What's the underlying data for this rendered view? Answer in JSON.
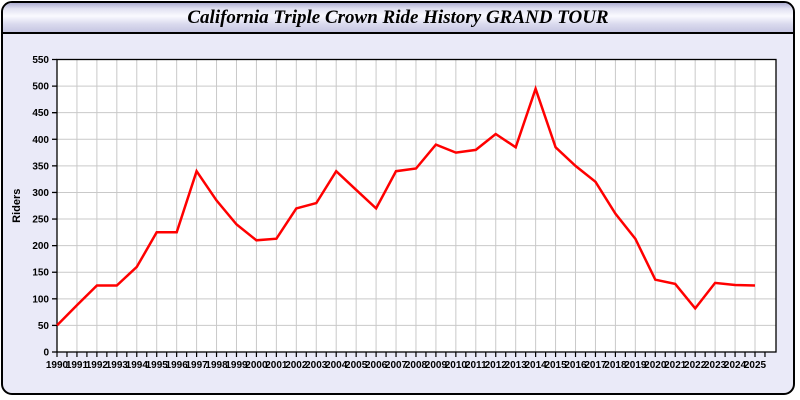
{
  "window": {
    "title": "California Triple Crown Ride History GRAND TOUR"
  },
  "chart_data": {
    "type": "line",
    "title": "California Triple Crown Ride History GRAND TOUR",
    "xlabel": "",
    "ylabel": "Riders",
    "x": [
      1990,
      1991,
      1992,
      1993,
      1994,
      1995,
      1996,
      1997,
      1998,
      1999,
      2000,
      2001,
      2002,
      2003,
      2004,
      2005,
      2006,
      2007,
      2008,
      2009,
      2010,
      2011,
      2012,
      2013,
      2014,
      2015,
      2016,
      2017,
      2018,
      2019,
      2020,
      2021,
      2022,
      2023,
      2024,
      2025
    ],
    "series": [
      {
        "name": "Riders",
        "color": "#ff0000",
        "values": [
          50,
          88,
          125,
          125,
          160,
          225,
          225,
          340,
          285,
          240,
          210,
          213,
          270,
          280,
          340,
          305,
          270,
          340,
          345,
          390,
          375,
          380,
          410,
          385,
          495,
          385,
          350,
          320,
          260,
          213,
          136,
          128,
          82,
          130,
          126,
          125
        ]
      }
    ],
    "ylim": [
      0,
      550
    ],
    "ytick_step": 50,
    "xtick_minor_step": 0.5,
    "grid": true,
    "legend": "none",
    "colors": {
      "plot_bg": "#ffffff",
      "grid": "#c9c9c9",
      "frame": "#000000",
      "outer_bg": "#eaeaf8"
    }
  }
}
